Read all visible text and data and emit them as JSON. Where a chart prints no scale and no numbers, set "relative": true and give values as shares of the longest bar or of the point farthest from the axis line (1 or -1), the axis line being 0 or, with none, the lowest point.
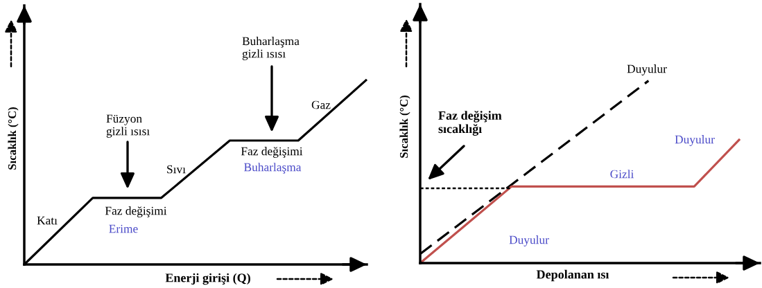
{
  "chart_data": [
    {
      "type": "line",
      "xlabel": "Enerji girişi (Q)",
      "ylabel": "Sıcaklık (°C)",
      "relative": true,
      "categories": [
        null,
        null,
        null,
        null,
        null,
        null
      ],
      "series": [
        {
          "color": "#000000",
          "values": [
            0,
            0.36,
            0.36,
            0.67,
            0.67,
            1
          ]
        }
      ],
      "annotations": [
        "Katı",
        "Füzyon\ngizli ısısı",
        "Faz değişimi",
        "Erime",
        "Sıvı",
        "Faz değişimi",
        "Buharlaşma",
        "Buharlaşma\ngizli ısısı",
        "Gaz"
      ]
    },
    {
      "type": "line",
      "xlabel": "Depolanan ısı",
      "ylabel": "Sıcaklık (°C)",
      "relative": true,
      "categories": [
        null,
        null,
        null,
        null,
        null,
        null,
        null,
        null
      ],
      "series": [
        {
          "color": "#000000",
          "line_style": "dashed",
          "values": [
            0.05,
            0.24,
            0.43,
            0.62,
            0.81,
            1,
            null,
            null
          ]
        },
        {
          "color": "#c0504d",
          "values": [
            0,
            0.21,
            0.42,
            0.42,
            0.42,
            0.42,
            0.42,
            0.68
          ]
        },
        {
          "color": "#000000",
          "line_style": "dotted",
          "values": [
            0.41,
            0.41,
            0.41,
            null,
            null,
            null,
            null,
            null
          ]
        }
      ],
      "annotations": [
        "Duyulur",
        "Faz değişim\nsıcaklığı",
        "Duyulur",
        "Gizli",
        "Duyulur"
      ]
    }
  ]
}
